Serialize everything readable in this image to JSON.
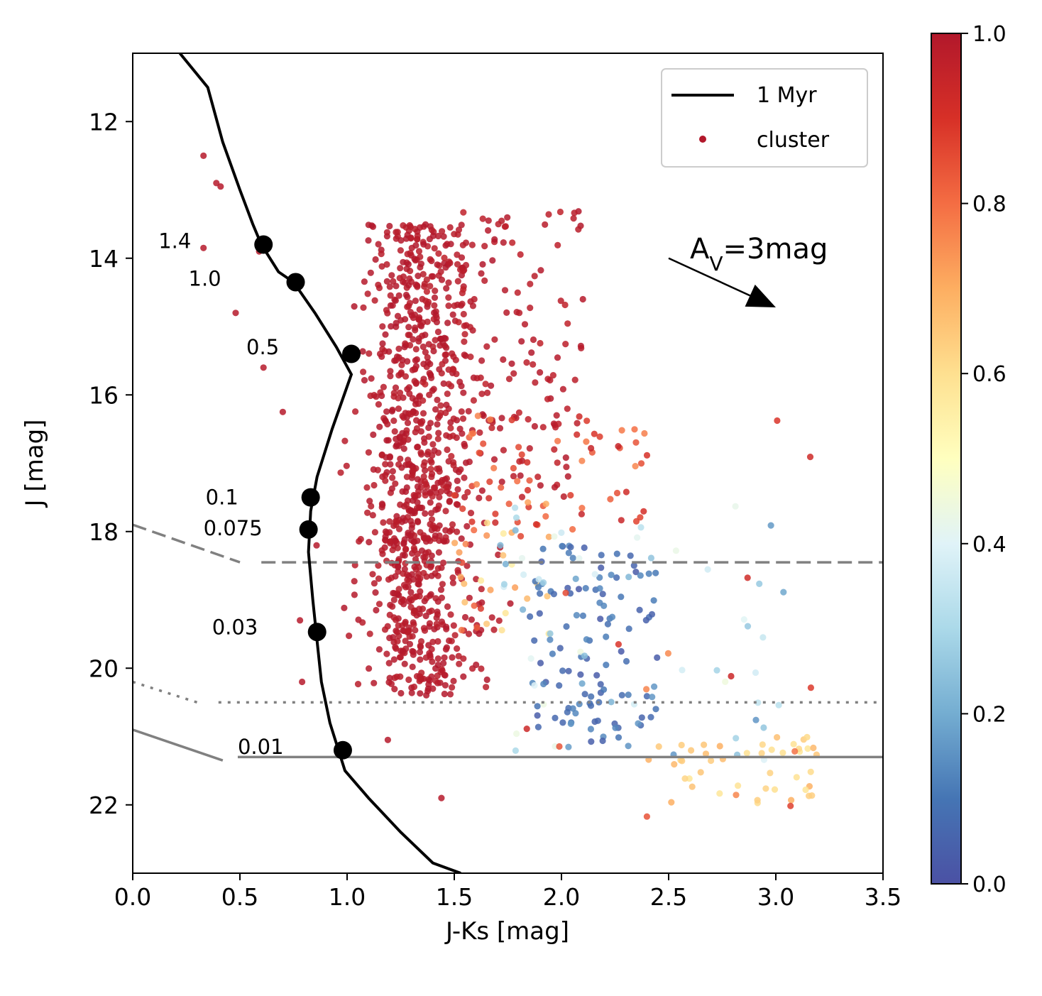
{
  "chart_data": {
    "type": "scatter",
    "xlabel": "J-Ks [mag]",
    "ylabel": "J [mag]",
    "xlim": [
      0.0,
      3.5
    ],
    "ylim": [
      23.0,
      11.0
    ],
    "y_inverted": true,
    "x_ticks": [
      "0.0",
      "0.5",
      "1.0",
      "1.5",
      "2.0",
      "2.5",
      "3.0",
      "3.5"
    ],
    "y_ticks": [
      "12",
      "14",
      "16",
      "18",
      "20",
      "22"
    ],
    "legend": {
      "position": "top-right",
      "entries": [
        {
          "label": "1 Myr",
          "kind": "line",
          "color": "#000000"
        },
        {
          "label": "cluster",
          "kind": "marker",
          "color": "#b2182b"
        }
      ]
    },
    "colorbar": {
      "range": [
        0.0,
        1.0
      ],
      "ticks": [
        "0.0",
        "0.2",
        "0.4",
        "0.6",
        "0.8",
        "1.0"
      ],
      "colormap": "RdYlBu_r",
      "stops": [
        "#4b51a4",
        "#4575b4",
        "#74add1",
        "#abd9e9",
        "#e0f3f8",
        "#ffffbf",
        "#fee090",
        "#fdae61",
        "#f46d43",
        "#d73027",
        "#b2182b"
      ]
    },
    "isochrone": {
      "label": "1 Myr",
      "x": [
        0.22,
        0.35,
        0.42,
        0.5,
        0.56,
        0.6,
        0.68,
        0.75,
        0.85,
        0.95,
        1.02,
        0.93,
        0.86,
        0.83,
        0.82,
        0.84,
        0.86,
        0.88,
        0.92,
        0.96,
        0.99,
        1.1,
        1.25,
        1.4,
        1.53
      ],
      "y": [
        11.0,
        11.5,
        12.3,
        13.0,
        13.5,
        13.8,
        14.2,
        14.35,
        14.8,
        15.3,
        15.7,
        16.5,
        17.2,
        17.7,
        18.3,
        19.0,
        19.6,
        20.2,
        20.8,
        21.2,
        21.5,
        21.9,
        22.4,
        22.85,
        23.0
      ]
    },
    "mass_points": [
      {
        "mass": "1.4",
        "x": 0.61,
        "y": 13.8
      },
      {
        "mass": "1.0",
        "x": 0.76,
        "y": 14.35
      },
      {
        "mass": "0.5",
        "x": 1.02,
        "y": 15.4
      },
      {
        "mass": "0.1",
        "x": 0.83,
        "y": 17.5
      },
      {
        "mass": "0.075",
        "x": 0.82,
        "y": 17.97
      },
      {
        "mass": "0.03",
        "x": 0.86,
        "y": 19.47
      },
      {
        "mass": "0.01",
        "x": 0.98,
        "y": 21.2
      }
    ],
    "mass_labels": [
      "1.4",
      "1.0",
      "0.5",
      "0.1",
      "0.075",
      "0.03",
      "0.01"
    ],
    "limit_lines": [
      {
        "style": "dashed",
        "segments": [
          [
            [
              0.0,
              17.9
            ],
            [
              0.5,
              18.45
            ]
          ],
          [
            [
              0.6,
              18.45
            ],
            [
              3.5,
              18.45
            ]
          ]
        ]
      },
      {
        "style": "dotted",
        "segments": [
          [
            [
              0.0,
              20.2
            ],
            [
              0.3,
              20.5
            ]
          ],
          [
            [
              0.4,
              20.5
            ],
            [
              3.5,
              20.5
            ]
          ]
        ]
      },
      {
        "style": "solid",
        "segments": [
          [
            [
              0.0,
              20.9
            ],
            [
              0.42,
              21.35
            ]
          ],
          [
            [
              0.49,
              21.3
            ],
            [
              3.5,
              21.3
            ]
          ]
        ]
      }
    ],
    "extinction_vector": {
      "label_prefix": "A",
      "label_sub": "V",
      "label_suffix": "=3mag",
      "x0": 2.5,
      "y0": 14.0,
      "x1": 3.0,
      "y1": 14.72
    },
    "scatter_points": {
      "n": 1350,
      "description": "cluster members: dense red sequence at J-Ks 1.0-1.6, J 13.5-20.5; redder members at J-Ks 1.6-3.2 colored by probability"
    }
  }
}
